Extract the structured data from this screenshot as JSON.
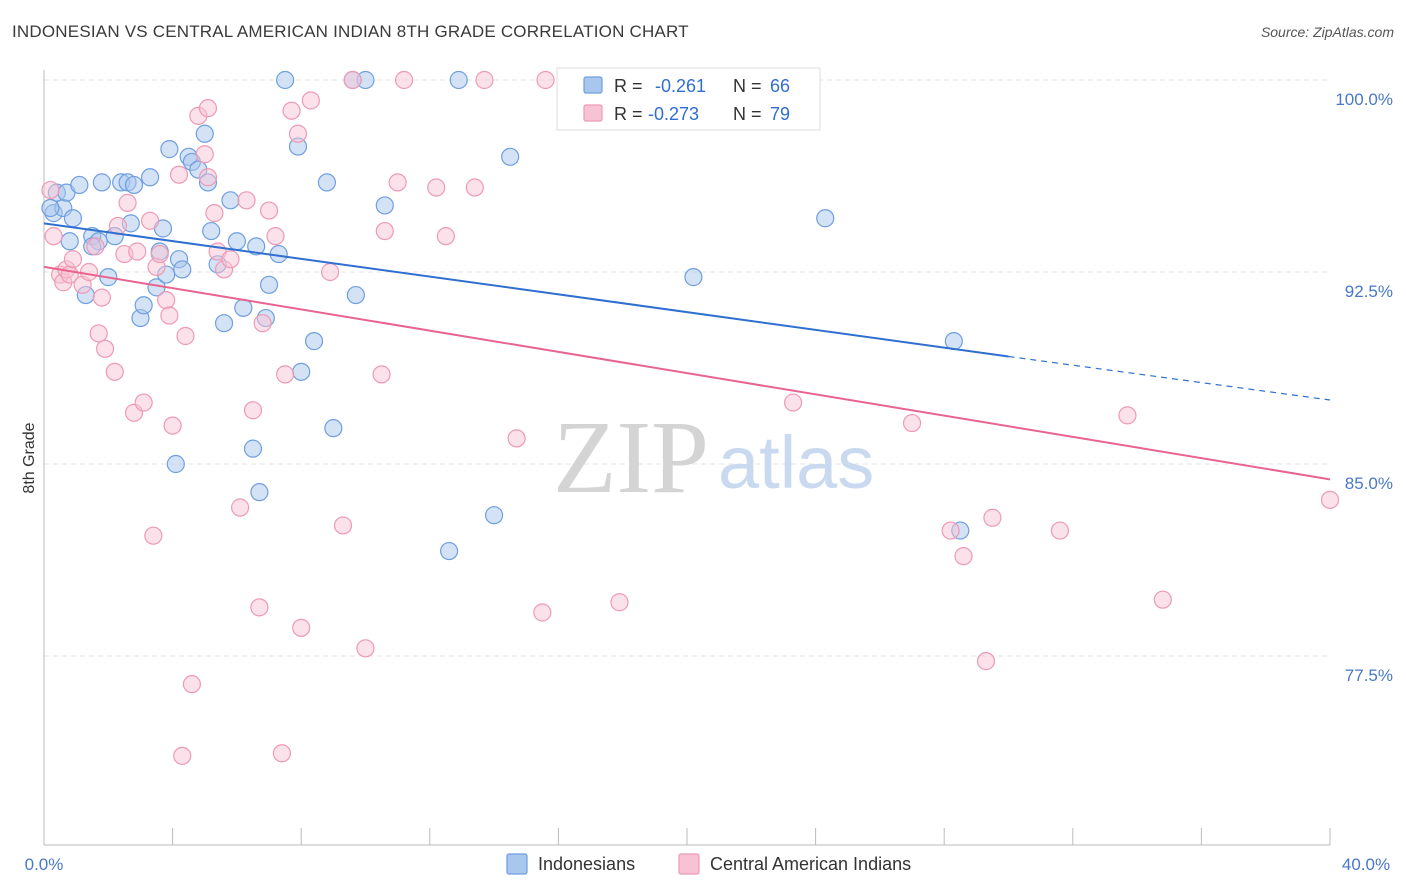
{
  "chart_data": {
    "type": "scatter",
    "title": "INDONESIAN VS CENTRAL AMERICAN INDIAN 8TH GRADE CORRELATION CHART",
    "source": "Source: ZipAtlas.com",
    "xlabel": "",
    "ylabel": "8th Grade",
    "xlim": [
      0,
      40
    ],
    "ylim": [
      71.5,
      101.5
    ],
    "x_tick_labels": [
      "0.0%",
      "40.0%"
    ],
    "y_ticks": [
      77.5,
      85.0,
      92.5,
      100.0
    ],
    "y_tick_labels": [
      "77.5%",
      "85.0%",
      "92.5%",
      "100.0%"
    ],
    "grid": true,
    "legend_position": "bottom",
    "watermark": {
      "zip": "ZIP",
      "atlas": "atlas"
    },
    "stats": [
      {
        "r_label": "R =",
        "r_value": "-0.261",
        "n_label": "N =",
        "n_value": "66"
      },
      {
        "r_label": "R =",
        "r_value": "-0.273",
        "n_label": "N =",
        "n_value": "79"
      }
    ],
    "series": [
      {
        "name": "Indonesians",
        "color": "#6f9fdf",
        "fill": "#a9c6ee",
        "line_color": "#2f6fd0",
        "trend": {
          "x_start": 0,
          "y_start": 94.4,
          "x_solid_end": 30,
          "y_solid_end": 89.2,
          "x_end": 40,
          "y_end": 87.5
        },
        "points": [
          [
            0.3,
            94.8
          ],
          [
            0.4,
            95.6
          ],
          [
            0.6,
            95.0
          ],
          [
            0.7,
            95.6
          ],
          [
            0.8,
            93.7
          ],
          [
            0.9,
            94.6
          ],
          [
            1.1,
            95.9
          ],
          [
            1.3,
            91.6
          ],
          [
            1.5,
            93.9
          ],
          [
            1.7,
            93.7
          ],
          [
            1.8,
            96.0
          ],
          [
            2.0,
            92.3
          ],
          [
            2.2,
            93.9
          ],
          [
            2.4,
            96.0
          ],
          [
            2.6,
            96.0
          ],
          [
            2.7,
            94.4
          ],
          [
            2.8,
            95.9
          ],
          [
            3.0,
            90.7
          ],
          [
            3.1,
            91.2
          ],
          [
            3.3,
            96.2
          ],
          [
            3.5,
            91.9
          ],
          [
            3.7,
            94.2
          ],
          [
            3.8,
            92.4
          ],
          [
            3.9,
            97.3
          ],
          [
            4.1,
            85.0
          ],
          [
            4.2,
            93.0
          ],
          [
            4.3,
            92.6
          ],
          [
            4.5,
            97.0
          ],
          [
            4.6,
            96.8
          ],
          [
            4.8,
            96.5
          ],
          [
            5.0,
            97.9
          ],
          [
            5.1,
            96.0
          ],
          [
            5.2,
            94.1
          ],
          [
            5.4,
            92.8
          ],
          [
            5.6,
            90.5
          ],
          [
            5.8,
            95.3
          ],
          [
            6.0,
            93.7
          ],
          [
            6.2,
            91.1
          ],
          [
            6.5,
            85.6
          ],
          [
            6.7,
            83.9
          ],
          [
            6.9,
            90.7
          ],
          [
            7.0,
            92.0
          ],
          [
            6.6,
            93.5
          ],
          [
            7.3,
            93.2
          ],
          [
            7.5,
            100.0
          ],
          [
            7.9,
            97.4
          ],
          [
            8.0,
            88.6
          ],
          [
            8.4,
            89.8
          ],
          [
            8.8,
            96.0
          ],
          [
            9.0,
            86.4
          ],
          [
            9.7,
            91.6
          ],
          [
            10.0,
            100.0
          ],
          [
            10.6,
            95.1
          ],
          [
            12.6,
            81.6
          ],
          [
            12.9,
            100.0
          ],
          [
            14.0,
            83.0
          ],
          [
            14.5,
            97.0
          ],
          [
            18.8,
            100.0
          ],
          [
            20.2,
            92.3
          ],
          [
            24.3,
            94.6
          ],
          [
            28.3,
            89.8
          ],
          [
            28.5,
            82.4
          ],
          [
            0.2,
            95.0
          ],
          [
            1.5,
            93.5
          ],
          [
            3.6,
            93.3
          ],
          [
            9.6,
            100.0
          ]
        ]
      },
      {
        "name": "Central American Indians",
        "color": "#ee9ab5",
        "fill": "#f7c3d4",
        "line_color": "#e8648e",
        "trend": {
          "x_start": 0,
          "y_start": 92.7,
          "x_end": 40,
          "y_end": 84.4
        },
        "points": [
          [
            0.2,
            95.7
          ],
          [
            0.3,
            93.9
          ],
          [
            0.5,
            92.4
          ],
          [
            0.6,
            92.1
          ],
          [
            0.7,
            92.6
          ],
          [
            0.8,
            92.4
          ],
          [
            0.9,
            93.0
          ],
          [
            1.2,
            92.0
          ],
          [
            1.4,
            92.5
          ],
          [
            1.6,
            93.5
          ],
          [
            1.7,
            90.1
          ],
          [
            1.8,
            91.5
          ],
          [
            1.9,
            89.5
          ],
          [
            2.2,
            88.6
          ],
          [
            2.3,
            94.3
          ],
          [
            2.5,
            93.2
          ],
          [
            2.6,
            95.2
          ],
          [
            2.8,
            87.0
          ],
          [
            2.9,
            93.3
          ],
          [
            3.1,
            87.4
          ],
          [
            3.3,
            94.5
          ],
          [
            3.4,
            82.2
          ],
          [
            3.5,
            92.7
          ],
          [
            3.8,
            91.4
          ],
          [
            3.9,
            90.8
          ],
          [
            4.0,
            86.5
          ],
          [
            4.2,
            96.3
          ],
          [
            4.3,
            73.6
          ],
          [
            4.4,
            90.0
          ],
          [
            4.6,
            76.4
          ],
          [
            4.8,
            98.6
          ],
          [
            5.0,
            97.1
          ],
          [
            5.1,
            96.2
          ],
          [
            5.3,
            94.8
          ],
          [
            5.4,
            93.3
          ],
          [
            5.6,
            92.6
          ],
          [
            5.8,
            93.0
          ],
          [
            6.1,
            83.3
          ],
          [
            6.3,
            95.3
          ],
          [
            6.5,
            87.1
          ],
          [
            6.7,
            79.4
          ],
          [
            6.8,
            90.5
          ],
          [
            7.0,
            94.9
          ],
          [
            7.2,
            93.9
          ],
          [
            7.4,
            73.7
          ],
          [
            7.5,
            88.5
          ],
          [
            7.7,
            98.8
          ],
          [
            7.9,
            97.9
          ],
          [
            8.0,
            78.6
          ],
          [
            8.3,
            99.2
          ],
          [
            8.9,
            92.5
          ],
          [
            9.3,
            82.6
          ],
          [
            9.6,
            100.0
          ],
          [
            10.0,
            77.8
          ],
          [
            10.5,
            88.5
          ],
          [
            10.6,
            94.1
          ],
          [
            11.0,
            96.0
          ],
          [
            11.2,
            100.0
          ],
          [
            12.5,
            93.9
          ],
          [
            13.4,
            95.8
          ],
          [
            13.7,
            100.0
          ],
          [
            14.7,
            86.0
          ],
          [
            15.5,
            79.2
          ],
          [
            15.6,
            100.0
          ],
          [
            17.9,
            79.6
          ],
          [
            22.0,
            100.0
          ],
          [
            23.3,
            87.4
          ],
          [
            27.0,
            86.6
          ],
          [
            28.2,
            82.4
          ],
          [
            28.6,
            81.4
          ],
          [
            29.3,
            77.3
          ],
          [
            29.5,
            82.9
          ],
          [
            31.6,
            82.4
          ],
          [
            33.7,
            86.9
          ],
          [
            34.8,
            79.7
          ],
          [
            40.0,
            83.6
          ],
          [
            5.1,
            98.9
          ],
          [
            3.6,
            93.2
          ],
          [
            12.2,
            95.8
          ]
        ]
      }
    ]
  }
}
